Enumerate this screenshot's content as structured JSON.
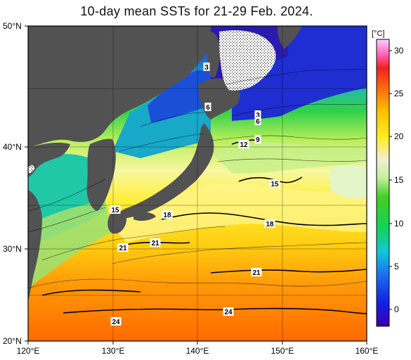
{
  "title": "10-day mean SSTs for 21-29 Feb. 2024.",
  "lat_labels": [
    "50°N",
    "40°N",
    "30°N",
    "20°N"
  ],
  "lon_labels": [
    "120°E",
    "130°E",
    "140°E",
    "150°E",
    "160°E"
  ],
  "colorbar": {
    "unit": "[°C]",
    "ticks": [
      "30",
      "25",
      "20",
      "15",
      "10",
      "5",
      "0"
    ]
  },
  "contour_labels": [
    {
      "text": "3"
    },
    {
      "text": "6"
    },
    {
      "text": "3"
    },
    {
      "text": "6"
    },
    {
      "text": "9"
    },
    {
      "text": "12"
    },
    {
      "text": "15"
    },
    {
      "text": "15"
    },
    {
      "text": "18"
    },
    {
      "text": "18"
    },
    {
      "text": "21"
    },
    {
      "text": "21"
    },
    {
      "text": "21"
    },
    {
      "text": "24"
    },
    {
      "text": "24"
    }
  ],
  "colors": {
    "land": "#505050",
    "sea_ice": "#ffffff",
    "frame": "#000000"
  }
}
